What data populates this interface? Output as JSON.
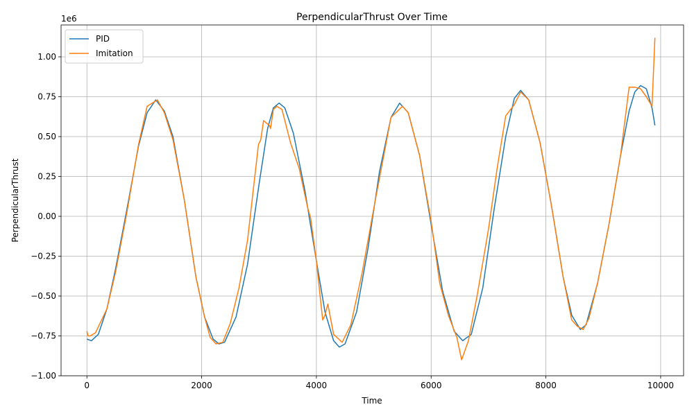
{
  "chart_data": {
    "type": "line",
    "title": "PerpendicularThrust Over Time",
    "xlabel": "Time",
    "ylabel": "PerpendicularThrust",
    "y_offset_label": "1e6",
    "xlim": [
      -450,
      10400
    ],
    "ylim": [
      -1.0,
      1.2
    ],
    "x_ticks": [
      0,
      2000,
      4000,
      6000,
      8000,
      10000
    ],
    "x_tick_labels": [
      "0",
      "2000",
      "4000",
      "6000",
      "8000",
      "10000"
    ],
    "y_ticks": [
      -1.0,
      -0.75,
      -0.5,
      -0.25,
      0.0,
      0.25,
      0.5,
      0.75,
      1.0
    ],
    "y_tick_labels": [
      "−1.00",
      "−0.75",
      "−0.50",
      "−0.25",
      "0.00",
      "0.25",
      "0.50",
      "0.75",
      "1.00"
    ],
    "grid": true,
    "legend_position": "top-left",
    "series": [
      {
        "name": "PID",
        "color": "#1f77b4",
        "x": [
          0,
          80,
          200,
          350,
          500,
          700,
          900,
          1050,
          1200,
          1350,
          1500,
          1700,
          1900,
          2050,
          2200,
          2300,
          2400,
          2600,
          2800,
          3000,
          3150,
          3250,
          3350,
          3450,
          3600,
          3800,
          4000,
          4150,
          4300,
          4400,
          4500,
          4700,
          4900,
          5100,
          5300,
          5450,
          5600,
          5800,
          6000,
          6200,
          6400,
          6550,
          6700,
          6900,
          7100,
          7300,
          7450,
          7560,
          7700,
          7900,
          8100,
          8300,
          8450,
          8600,
          8700,
          8900,
          9100,
          9300,
          9450,
          9550,
          9650,
          9750,
          9850,
          9900
        ],
        "y": [
          -0.77,
          -0.78,
          -0.74,
          -0.58,
          -0.33,
          0.05,
          0.44,
          0.65,
          0.73,
          0.66,
          0.5,
          0.1,
          -0.38,
          -0.63,
          -0.77,
          -0.8,
          -0.79,
          -0.63,
          -0.3,
          0.2,
          0.55,
          0.68,
          0.71,
          0.68,
          0.52,
          0.16,
          -0.28,
          -0.6,
          -0.78,
          -0.82,
          -0.8,
          -0.6,
          -0.2,
          0.28,
          0.62,
          0.71,
          0.65,
          0.38,
          -0.05,
          -0.47,
          -0.72,
          -0.78,
          -0.74,
          -0.45,
          0.05,
          0.5,
          0.74,
          0.79,
          0.73,
          0.46,
          0.06,
          -0.38,
          -0.62,
          -0.71,
          -0.68,
          -0.42,
          -0.05,
          0.38,
          0.66,
          0.78,
          0.82,
          0.8,
          0.68,
          0.57
        ]
      },
      {
        "name": "Imitation",
        "color": "#ff7f0e",
        "x": [
          0,
          20,
          60,
          150,
          350,
          500,
          700,
          900,
          1050,
          1230,
          1350,
          1500,
          1700,
          1900,
          2050,
          2150,
          2250,
          2370,
          2500,
          2650,
          2800,
          2990,
          3030,
          3080,
          3180,
          3200,
          3250,
          3310,
          3400,
          3550,
          3700,
          3850,
          3900,
          4000,
          4080,
          4110,
          4150,
          4200,
          4300,
          4450,
          4600,
          4800,
          5000,
          5200,
          5300,
          5500,
          5600,
          5800,
          6000,
          6150,
          6300,
          6450,
          6530,
          6650,
          6800,
          7000,
          7150,
          7300,
          7450,
          7560,
          7700,
          7900,
          8100,
          8300,
          8450,
          8550,
          8650,
          8750,
          8900,
          9100,
          9300,
          9450,
          9550,
          9650,
          9750,
          9850,
          9900
        ],
        "y": [
          -0.72,
          -0.75,
          -0.75,
          -0.73,
          -0.58,
          -0.35,
          0.03,
          0.45,
          0.69,
          0.73,
          0.65,
          0.48,
          0.1,
          -0.38,
          -0.63,
          -0.76,
          -0.8,
          -0.79,
          -0.67,
          -0.45,
          -0.15,
          0.45,
          0.48,
          0.6,
          0.57,
          0.55,
          0.67,
          0.69,
          0.67,
          0.46,
          0.3,
          0.05,
          -0.01,
          -0.28,
          -0.55,
          -0.65,
          -0.62,
          -0.55,
          -0.74,
          -0.79,
          -0.68,
          -0.35,
          0.05,
          0.43,
          0.62,
          0.69,
          0.65,
          0.38,
          -0.03,
          -0.42,
          -0.62,
          -0.76,
          -0.9,
          -0.78,
          -0.5,
          -0.08,
          0.3,
          0.63,
          0.7,
          0.78,
          0.73,
          0.46,
          0.06,
          -0.38,
          -0.65,
          -0.69,
          -0.71,
          -0.64,
          -0.42,
          -0.05,
          0.38,
          0.81,
          0.81,
          0.8,
          0.75,
          0.69,
          1.12
        ]
      }
    ]
  }
}
